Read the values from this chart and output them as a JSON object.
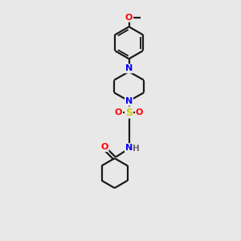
{
  "bg_color": "#e8e8e8",
  "bond_color": "#1a1a1a",
  "atom_colors": {
    "N": "#0000ee",
    "O": "#ff0000",
    "S": "#cccc00",
    "C": "#1a1a1a",
    "H": "#666666"
  },
  "figsize": [
    3.0,
    3.0
  ],
  "dpi": 100,
  "lw": 1.6,
  "fs": 7.5
}
